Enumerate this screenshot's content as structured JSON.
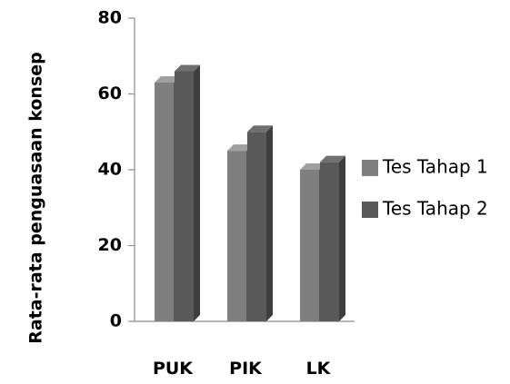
{
  "chart_data": {
    "type": "bar",
    "style": "3d-clustered",
    "categories": [
      "PUK",
      "PIK",
      "LK"
    ],
    "series": [
      {
        "name": "Tes Tahap 1",
        "values": [
          63,
          45,
          40
        ],
        "color": "#7f7f7f"
      },
      {
        "name": "Tes Tahap 2",
        "values": [
          66,
          50,
          42
        ],
        "color": "#595959"
      }
    ],
    "title": "",
    "xlabel": "",
    "ylabel": "Rata-rata penguasaan konsep",
    "ylim": [
      0,
      80
    ],
    "yticks": [
      0,
      20,
      40,
      60,
      80
    ],
    "grid": false,
    "legend_position": "right"
  }
}
